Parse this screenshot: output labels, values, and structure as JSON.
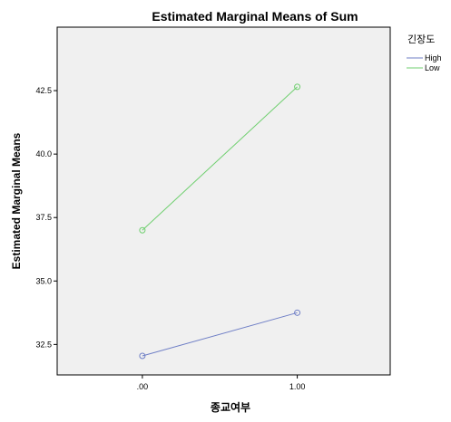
{
  "chart_data": {
    "type": "line",
    "title": "Estimated Marginal Means of Sum",
    "xlabel": "종교여부",
    "ylabel": "Estimated Marginal Means",
    "x_categories": [
      ".00",
      "1.00"
    ],
    "x_positions": [
      0,
      1
    ],
    "xlim": [
      -0.55,
      1.6
    ],
    "ylim": [
      31.3,
      45.0
    ],
    "y_ticks": [
      32.5,
      35.0,
      37.5,
      40.0,
      42.5
    ],
    "y_tick_labels": [
      "32.5",
      "35.0",
      "37.5",
      "40.0",
      "42.5"
    ],
    "grid": false,
    "legend": {
      "title": "긴장도",
      "placement": "right"
    },
    "series": [
      {
        "name": "High",
        "color": "#6f7fc6",
        "values": [
          32.05,
          33.75
        ]
      },
      {
        "name": "Low",
        "color": "#6fcf6f",
        "values": [
          37.0,
          42.65
        ]
      }
    ],
    "plot_background": "#f0f0f0"
  }
}
